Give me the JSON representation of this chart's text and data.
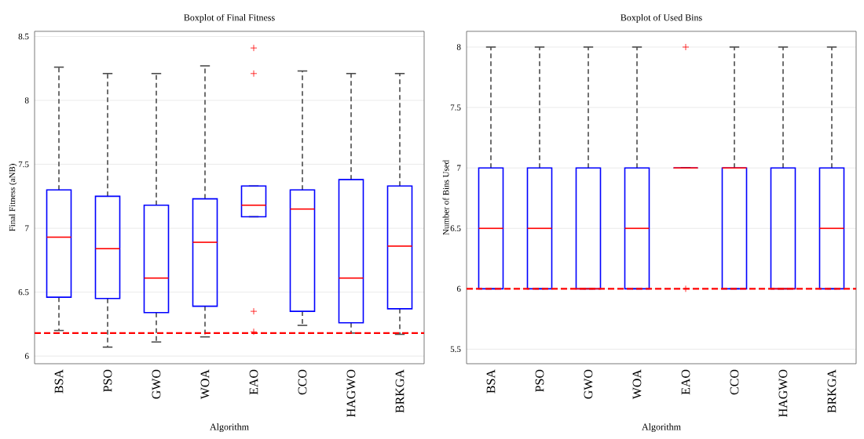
{
  "chart_data": [
    {
      "type": "box",
      "title": "Boxplot of Final Fitness",
      "xlabel": "Algorithm",
      "ylabel": "Final Fitness (aNB)",
      "categories": [
        "BSA",
        "PSO",
        "GWO",
        "WOA",
        "EAO",
        "CCO",
        "HAGWO",
        "BRKGA"
      ],
      "color": "#0000ff",
      "boxes": [
        {
          "low": 6.2,
          "q1": 6.46,
          "median": 6.93,
          "q3": 7.3,
          "high": 8.26
        },
        {
          "low": 6.07,
          "q1": 6.45,
          "median": 6.84,
          "q3": 7.25,
          "high": 8.21
        },
        {
          "low": 6.11,
          "q1": 6.34,
          "median": 6.61,
          "q3": 7.18,
          "high": 8.21
        },
        {
          "low": 6.15,
          "q1": 6.39,
          "median": 6.89,
          "q3": 7.23,
          "high": 8.27
        },
        {
          "low": 7.09,
          "q1": 7.09,
          "median": 7.18,
          "q3": 7.33,
          "high": 7.33,
          "outliers": [
            8.41,
            8.21,
            6.35,
            6.19
          ]
        },
        {
          "low": 6.24,
          "q1": 6.35,
          "median": 7.15,
          "q3": 7.3,
          "high": 8.23
        },
        {
          "low": 6.18,
          "q1": 6.26,
          "median": 6.61,
          "q3": 7.38,
          "high": 8.21
        },
        {
          "low": 6.17,
          "q1": 6.37,
          "median": 6.86,
          "q3": 7.33,
          "high": 8.21
        }
      ],
      "ylim": [
        5.94,
        8.54
      ],
      "yticks": [
        6,
        6.5,
        7,
        7.5,
        8,
        8.5
      ],
      "grid": "y",
      "ref_lines": [
        {
          "axis": "y",
          "value": 6.18,
          "color": "#ff0000",
          "line_style": "dashed"
        }
      ]
    },
    {
      "type": "box",
      "title": "Boxplot of Used Bins",
      "xlabel": "Algorithm",
      "ylabel": "Number of Bins Used",
      "categories": [
        "BSA",
        "PSO",
        "GWO",
        "WOA",
        "EAO",
        "CCO",
        "HAGWO",
        "BRKGA"
      ],
      "color": "#0000ff",
      "boxes": [
        {
          "low": 6,
          "q1": 6,
          "median": 6.5,
          "q3": 7,
          "high": 8
        },
        {
          "low": 6,
          "q1": 6,
          "median": 6.5,
          "q3": 7,
          "high": 8
        },
        {
          "low": 6,
          "q1": 6,
          "median": 6,
          "q3": 7,
          "high": 8
        },
        {
          "low": 6,
          "q1": 6,
          "median": 6.5,
          "q3": 7,
          "high": 8
        },
        {
          "low": 7,
          "q1": 7,
          "median": 7,
          "q3": 7,
          "high": 7,
          "outliers": [
            8,
            6
          ]
        },
        {
          "low": 6,
          "q1": 6,
          "median": 7,
          "q3": 7,
          "high": 8
        },
        {
          "low": 6,
          "q1": 6,
          "median": 6,
          "q3": 7,
          "high": 8
        },
        {
          "low": 6,
          "q1": 6,
          "median": 6.5,
          "q3": 7,
          "high": 8
        }
      ],
      "ylim": [
        5.38,
        8.13
      ],
      "yticks": [
        5.5,
        6,
        6.5,
        7,
        7.5,
        8
      ],
      "grid": "y",
      "ref_lines": [
        {
          "axis": "y",
          "value": 6,
          "color": "#ff0000",
          "line_style": "dashed"
        }
      ]
    }
  ]
}
